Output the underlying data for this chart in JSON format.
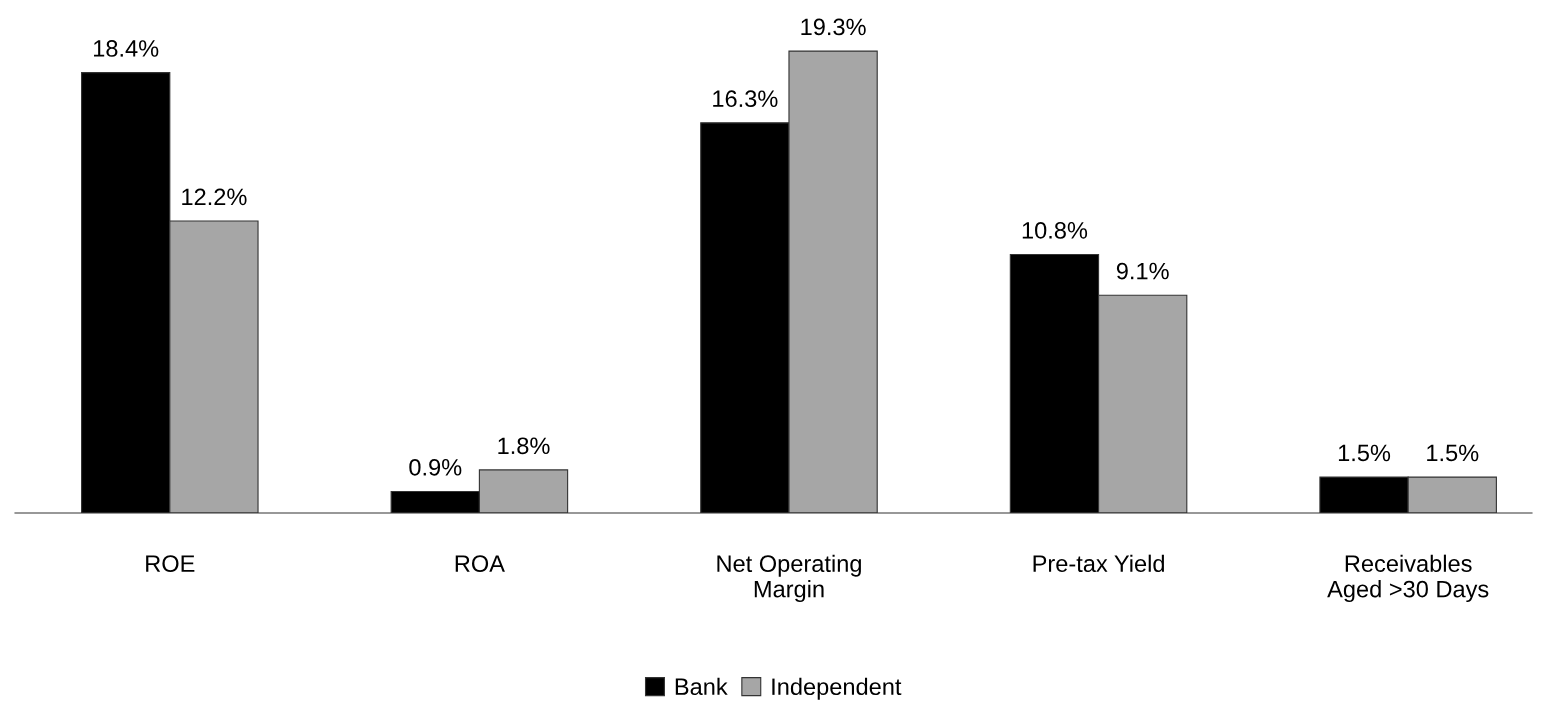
{
  "chart_data": {
    "type": "bar",
    "categories": [
      "ROE",
      "ROA",
      "Net Operating\nMargin",
      "Pre-tax Yield",
      "Receivables\nAged >30 Days"
    ],
    "series": [
      {
        "name": "Bank",
        "color": "#000000",
        "values": [
          18.4,
          0.9,
          16.3,
          10.8,
          1.5
        ],
        "value_labels": [
          "18.4%",
          "0.9%",
          "16.3%",
          "10.8%",
          "1.5%"
        ]
      },
      {
        "name": "Independent",
        "color": "#a6a6a6",
        "values": [
          12.2,
          1.8,
          19.3,
          9.1,
          1.5
        ],
        "value_labels": [
          "12.2%",
          "1.8%",
          "19.3%",
          "9.1%",
          "1.5%"
        ]
      }
    ],
    "grid": false,
    "legend": "bottom"
  }
}
